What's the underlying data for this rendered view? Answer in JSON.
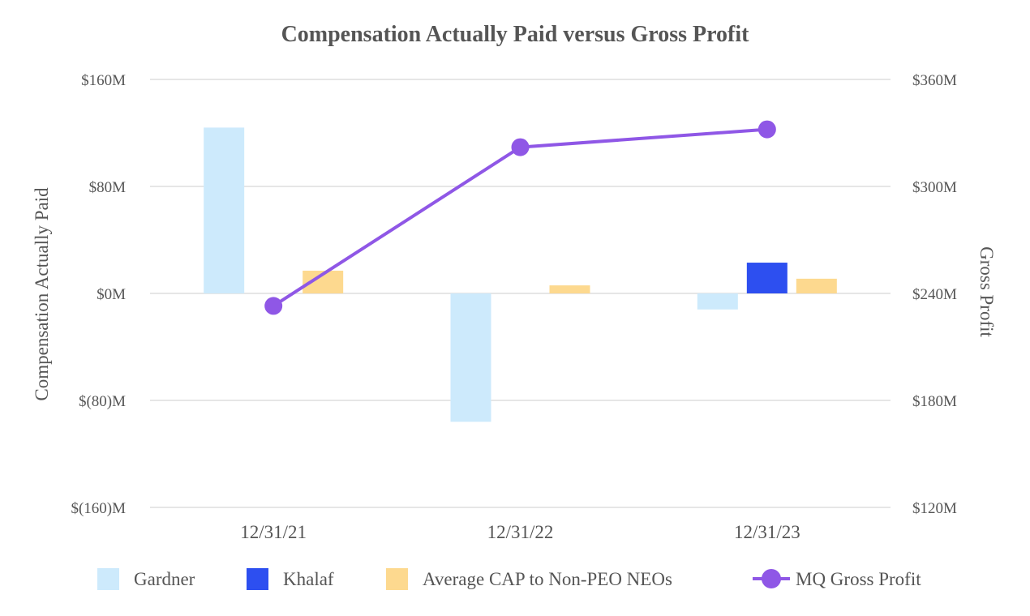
{
  "chart_data": {
    "type": "bar",
    "title": "Compensation Actually Paid versus Gross Profit",
    "ylabel": "Compensation Actually Paid",
    "y2label": "Gross Profit",
    "categories": [
      "12/31/21",
      "12/31/22",
      "12/31/23"
    ],
    "ylim": [
      -160,
      160
    ],
    "y2lim": [
      120,
      360
    ],
    "yticks": [
      "$160M",
      "$80M",
      "$0M",
      "$(80)M",
      "$(160)M"
    ],
    "ytick_values": [
      160,
      80,
      0,
      -80,
      -160
    ],
    "y2ticks": [
      "$360M",
      "$300M",
      "$240M",
      "$180M",
      "$120M"
    ],
    "y2tick_values": [
      360,
      300,
      240,
      180,
      120
    ],
    "series": [
      {
        "name": "Gardner",
        "kind": "bar",
        "axis": "left",
        "color": "#cdeafc",
        "values": [
          124,
          -96,
          -12
        ]
      },
      {
        "name": "Khalaf",
        "kind": "bar",
        "axis": "left",
        "color": "#2d4ff0",
        "values": [
          null,
          null,
          23
        ]
      },
      {
        "name": "Average CAP to Non-PEO NEOs",
        "kind": "bar",
        "axis": "left",
        "color": "#fdd98f",
        "values": [
          17,
          6,
          11
        ]
      },
      {
        "name": "MQ Gross Profit",
        "kind": "line",
        "axis": "right",
        "color": "#8f57e6",
        "values": [
          233,
          322,
          332
        ]
      }
    ],
    "legend_position": "bottom",
    "grid": true
  }
}
